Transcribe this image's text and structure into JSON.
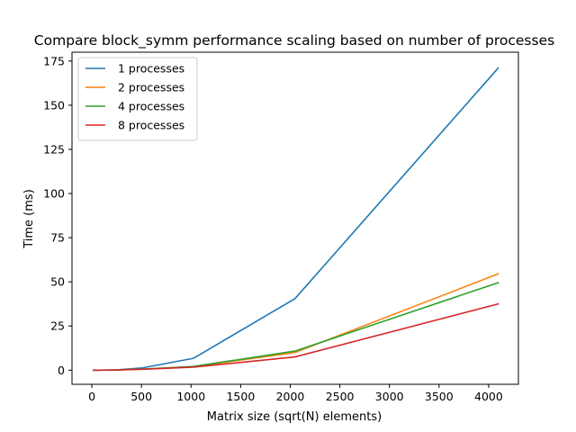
{
  "chart_data": {
    "type": "line",
    "title": "Compare block_symm performance scaling based on number of processes",
    "xlabel": "Matrix size (sqrt(N) elements)",
    "ylabel": "Time (ms)",
    "xlim": [
      -200,
      4300
    ],
    "ylim": [
      -8,
      180
    ],
    "xticks": [
      0,
      500,
      1000,
      1500,
      2000,
      2500,
      3000,
      3500,
      4000
    ],
    "yticks": [
      0,
      25,
      50,
      75,
      100,
      125,
      150,
      175
    ],
    "legend_position": "top-left",
    "grid": false,
    "x": [
      16,
      32,
      64,
      128,
      256,
      512,
      1024,
      2048,
      4096
    ],
    "series": [
      {
        "name": "1 processes",
        "color": "#1f77b4",
        "values": [
          0.0,
          0.0,
          0.01,
          0.04,
          0.2,
          1.3,
          6.7,
          40.5,
          171.0
        ]
      },
      {
        "name": "2 processes",
        "color": "#ff7f0e",
        "values": [
          0.0,
          0.0,
          0.01,
          0.03,
          0.1,
          0.6,
          2.0,
          10.0,
          54.5
        ]
      },
      {
        "name": "4 processes",
        "color": "#2ca02c",
        "values": [
          0.0,
          0.0,
          0.01,
          0.03,
          0.1,
          0.6,
          2.1,
          10.8,
          49.5
        ]
      },
      {
        "name": "8 processes",
        "color": "#d62728",
        "values": [
          0.0,
          0.0,
          0.01,
          0.03,
          0.1,
          0.5,
          1.7,
          7.5,
          37.5
        ]
      }
    ]
  }
}
